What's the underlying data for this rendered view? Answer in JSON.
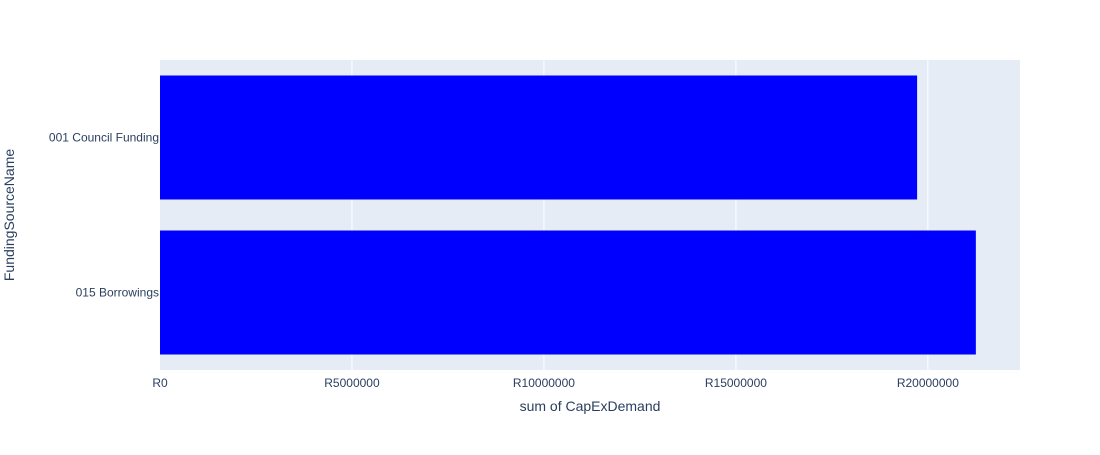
{
  "chart_data": {
    "type": "bar",
    "orientation": "horizontal",
    "categories": [
      "001 Council Funding",
      "015 Borrowings"
    ],
    "values": [
      19720000,
      21250000
    ],
    "xlabel": "sum of CapExDemand",
    "ylabel": "FundingSourceName",
    "xlim": [
      0,
      22400000
    ],
    "xticks": [
      0,
      5000000,
      10000000,
      15000000,
      20000000
    ],
    "xtick_labels": [
      "R0",
      "R5000000",
      "R10000000",
      "R15000000",
      "R20000000"
    ],
    "grid": true,
    "legend": "none",
    "colors": {
      "bar": "#0000ff",
      "plot_bg": "#e5ecf6",
      "grid": "#ffffff",
      "text": "#2a3f5f"
    }
  }
}
